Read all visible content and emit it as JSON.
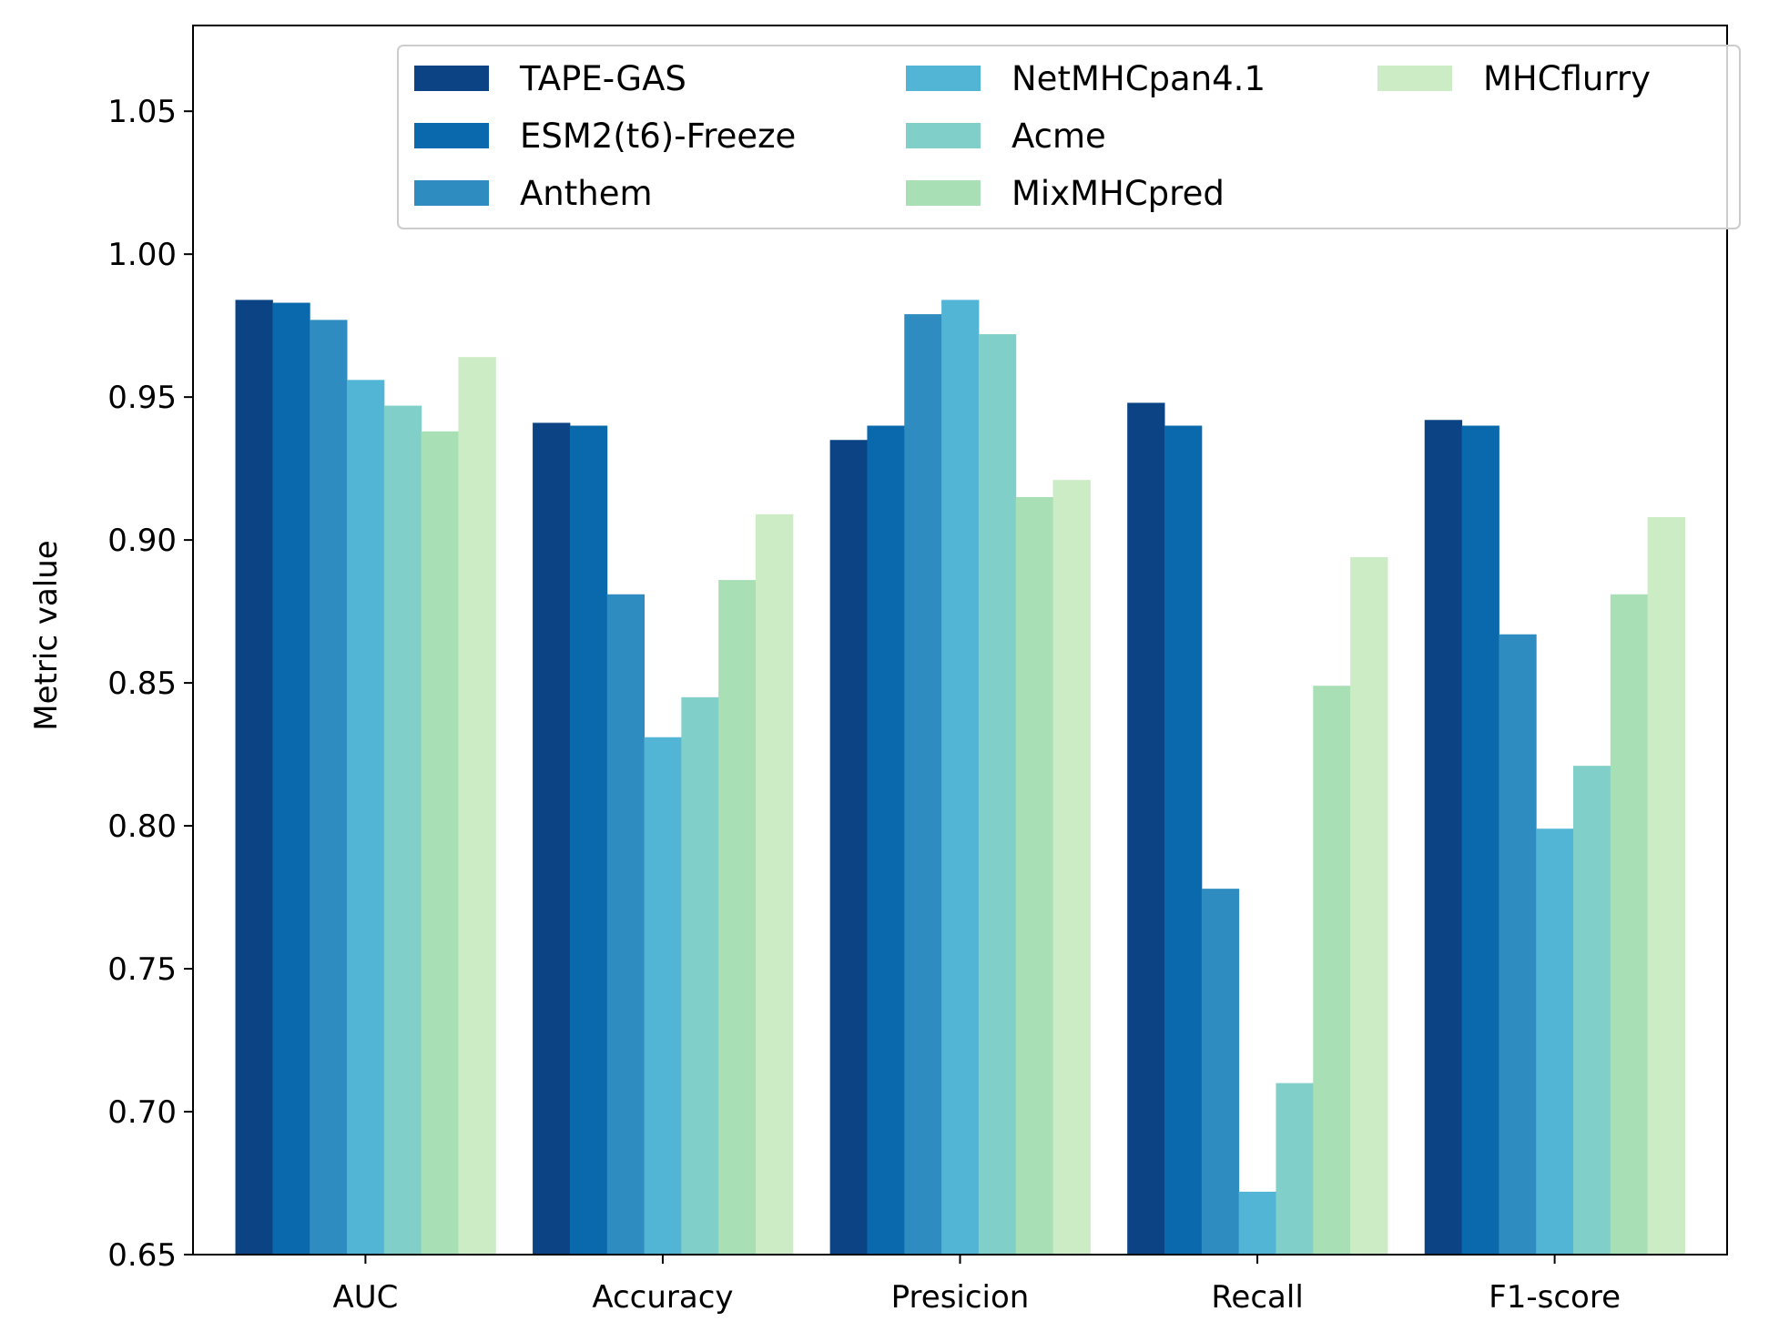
{
  "chart_data": {
    "type": "bar",
    "title": "",
    "xlabel": "",
    "ylabel": "Metric value",
    "ylim": [
      0.65,
      1.08
    ],
    "yticks": [
      "0.65",
      "0.70",
      "0.75",
      "0.80",
      "0.85",
      "0.90",
      "0.95",
      "1.00",
      "1.05"
    ],
    "categories": [
      "AUC",
      "Accuracy",
      "Presicion",
      "Recall",
      "F1-score"
    ],
    "legend_position": "top-right",
    "legend_columns": 3,
    "grid": false,
    "series": [
      {
        "name": "TAPE-GAS",
        "color": "#0c4385",
        "values": [
          0.984,
          0.941,
          0.935,
          0.948,
          0.942
        ]
      },
      {
        "name": "ESM2(t6)-Freeze",
        "color": "#0a68ad",
        "values": [
          0.983,
          0.94,
          0.94,
          0.94,
          0.94
        ]
      },
      {
        "name": "Anthem",
        "color": "#2f8cc0",
        "values": [
          0.977,
          0.881,
          0.979,
          0.778,
          0.867
        ]
      },
      {
        "name": "NetMHCpan4.1",
        "color": "#52b5d6",
        "values": [
          0.956,
          0.831,
          0.984,
          0.672,
          0.799
        ]
      },
      {
        "name": "Acme",
        "color": "#80cfc8",
        "values": [
          0.947,
          0.845,
          0.972,
          0.71,
          0.821
        ]
      },
      {
        "name": "MixMHCpred",
        "color": "#a8dfb5",
        "values": [
          0.938,
          0.886,
          0.915,
          0.849,
          0.881
        ]
      },
      {
        "name": "MHCflurry",
        "color": "#ccecc5",
        "values": [
          0.964,
          0.909,
          0.921,
          0.894,
          0.908
        ]
      }
    ]
  }
}
